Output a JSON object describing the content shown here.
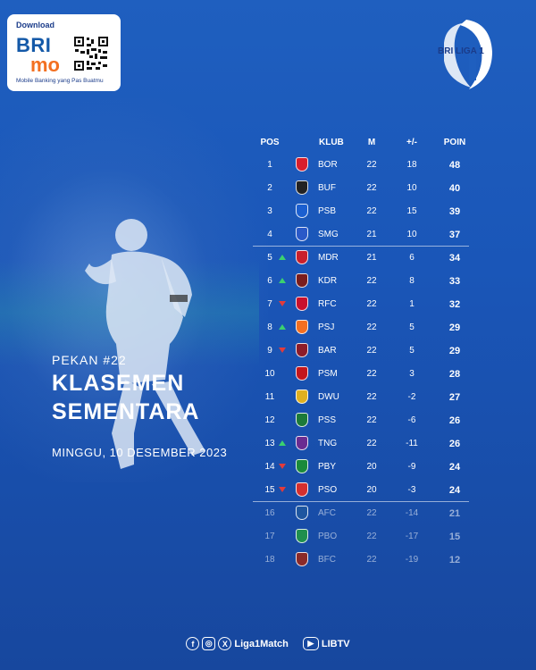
{
  "sponsor": {
    "download": "Download",
    "brand_bri": "BRI",
    "brand_mo": "mo",
    "tagline": "Mobile Banking yang Pas Buatmu"
  },
  "league": {
    "name": "BRI LIGA 1"
  },
  "title_block": {
    "pekan": "PEKAN #22",
    "title_line1": "KLASEMEN",
    "title_line2": "SEMENTARA",
    "date": "MINGGU, 10 DESEMBER 2023"
  },
  "table": {
    "headers": {
      "pos": "POS",
      "club": "KLUB",
      "played": "M",
      "gd": "+/-",
      "points": "POIN"
    },
    "rows": [
      {
        "pos": "1",
        "trend": "",
        "club": "BOR",
        "played": "22",
        "gd": "18",
        "points": "48",
        "crest_color": "#d81e2c"
      },
      {
        "pos": "2",
        "trend": "",
        "club": "BUF",
        "played": "22",
        "gd": "10",
        "points": "40",
        "crest_color": "#222222"
      },
      {
        "pos": "3",
        "trend": "",
        "club": "PSB",
        "played": "22",
        "gd": "15",
        "points": "39",
        "crest_color": "#1b5fd0"
      },
      {
        "pos": "4",
        "trend": "",
        "club": "SMG",
        "played": "21",
        "gd": "10",
        "points": "37",
        "crest_color": "#2a59c8"
      },
      {
        "pos": "5",
        "trend": "up",
        "club": "MDR",
        "played": "21",
        "gd": "6",
        "points": "34",
        "crest_color": "#c9202c"
      },
      {
        "pos": "6",
        "trend": "up",
        "club": "KDR",
        "played": "22",
        "gd": "8",
        "points": "33",
        "crest_color": "#7a1d1d"
      },
      {
        "pos": "7",
        "trend": "down",
        "club": "RFC",
        "played": "22",
        "gd": "1",
        "points": "32",
        "crest_color": "#c8102e"
      },
      {
        "pos": "8",
        "trend": "up",
        "club": "PSJ",
        "played": "22",
        "gd": "5",
        "points": "29",
        "crest_color": "#f36f21"
      },
      {
        "pos": "9",
        "trend": "down",
        "club": "BAR",
        "played": "22",
        "gd": "5",
        "points": "29",
        "crest_color": "#8c1c2a"
      },
      {
        "pos": "10",
        "trend": "",
        "club": "PSM",
        "played": "22",
        "gd": "3",
        "points": "28",
        "crest_color": "#c4161c"
      },
      {
        "pos": "11",
        "trend": "",
        "club": "DWU",
        "played": "22",
        "gd": "-2",
        "points": "27",
        "crest_color": "#e0b020"
      },
      {
        "pos": "12",
        "trend": "",
        "club": "PSS",
        "played": "22",
        "gd": "-6",
        "points": "26",
        "crest_color": "#1c7a3a"
      },
      {
        "pos": "13",
        "trend": "up",
        "club": "TNG",
        "played": "22",
        "gd": "-11",
        "points": "26",
        "crest_color": "#6a2c91"
      },
      {
        "pos": "14",
        "trend": "down",
        "club": "PBY",
        "played": "20",
        "gd": "-9",
        "points": "24",
        "crest_color": "#1a8a3a"
      },
      {
        "pos": "15",
        "trend": "down",
        "club": "PSO",
        "played": "20",
        "gd": "-3",
        "points": "24",
        "crest_color": "#d32f2f"
      },
      {
        "pos": "16",
        "trend": "",
        "club": "AFC",
        "played": "22",
        "gd": "-14",
        "points": "21",
        "crest_color": "#1e56a0"
      },
      {
        "pos": "17",
        "trend": "",
        "club": "PBO",
        "played": "22",
        "gd": "-17",
        "points": "15",
        "crest_color": "#1f8f4e"
      },
      {
        "pos": "18",
        "trend": "",
        "club": "BFC",
        "played": "22",
        "gd": "-19",
        "points": "12",
        "crest_color": "#8a2a2a"
      }
    ]
  },
  "footer": {
    "handle": "Liga1Match",
    "tv": "LIBTV",
    "icons": [
      "facebook-icon",
      "instagram-icon",
      "x-icon",
      "youtube-icon"
    ]
  },
  "colors": {
    "background": "#1a56b8",
    "trend_up": "#3bd16f",
    "trend_down": "#e23b3b"
  }
}
